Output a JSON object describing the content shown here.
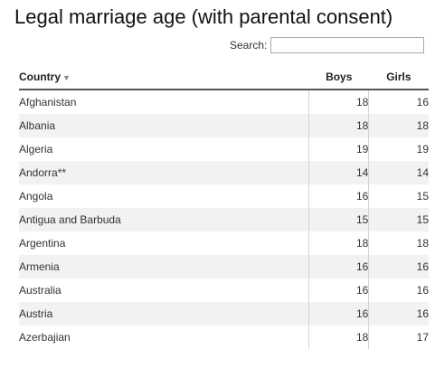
{
  "title": "Legal marriage age (with parental consent)",
  "search": {
    "label": "Search:",
    "value": "",
    "placeholder": ""
  },
  "table": {
    "headers": {
      "country": "Country",
      "boys": "Boys",
      "girls": "Girls"
    },
    "sort_icon": "sort-desc-icon",
    "rows": [
      {
        "country": "Afghanistan",
        "boys": "18",
        "girls": "16"
      },
      {
        "country": "Albania",
        "boys": "18",
        "girls": "18"
      },
      {
        "country": "Algeria",
        "boys": "19",
        "girls": "19"
      },
      {
        "country": "Andorra**",
        "boys": "14",
        "girls": "14"
      },
      {
        "country": "Angola",
        "boys": "16",
        "girls": "15"
      },
      {
        "country": "Antigua and Barbuda",
        "boys": "15",
        "girls": "15"
      },
      {
        "country": "Argentina",
        "boys": "18",
        "girls": "18"
      },
      {
        "country": "Armenia",
        "boys": "16",
        "girls": "16"
      },
      {
        "country": "Australia",
        "boys": "16",
        "girls": "16"
      },
      {
        "country": "Austria",
        "boys": "16",
        "girls": "16"
      },
      {
        "country": "Azerbajian",
        "boys": "18",
        "girls": "17"
      }
    ]
  },
  "colors": {
    "stripe": "#f2f2f2",
    "header_rule": "#555555",
    "divider": "#d3d3d3"
  }
}
